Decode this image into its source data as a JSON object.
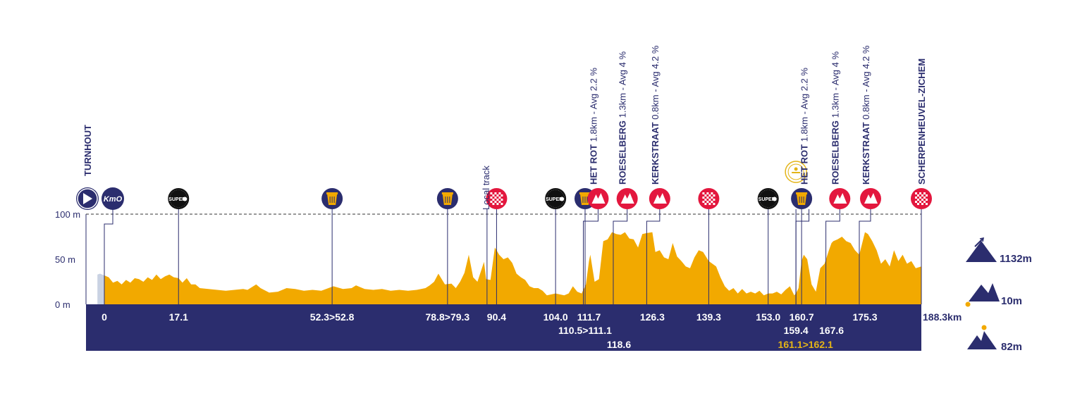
{
  "colors": {
    "navy": "#2b2d6e",
    "orange": "#f2a900",
    "red": "#e3173e",
    "gold": "#e3b417",
    "neutral_fill": "#c9d2e3",
    "white": "#ffffff"
  },
  "chart_data": {
    "type": "area",
    "title": "",
    "xlabel": "",
    "ylabel": "",
    "x_unit": "km",
    "xlim": [
      -1.6,
      188.3
    ],
    "ylim": [
      0,
      100
    ],
    "y_ticks": [
      {
        "value": 100,
        "label": "100 m"
      },
      {
        "value": 50,
        "label": "50 m"
      },
      {
        "value": 0,
        "label": "0 m"
      }
    ],
    "start_name": "TURNHOUT",
    "finish_name": "SCHERPENHEUVEL-ZICHEM",
    "kmo_label": "KmO",
    "profile": [
      [
        -1.6,
        33
      ],
      [
        -1,
        34
      ],
      [
        0,
        32
      ],
      [
        1,
        30
      ],
      [
        2,
        24
      ],
      [
        3,
        26
      ],
      [
        4,
        22
      ],
      [
        5,
        27
      ],
      [
        6,
        24
      ],
      [
        7,
        29
      ],
      [
        8,
        28
      ],
      [
        9,
        25
      ],
      [
        10,
        30
      ],
      [
        11,
        27
      ],
      [
        12,
        33
      ],
      [
        13,
        28
      ],
      [
        14,
        31
      ],
      [
        15,
        33
      ],
      [
        16,
        30
      ],
      [
        17.1,
        29
      ],
      [
        18,
        24
      ],
      [
        19,
        29
      ],
      [
        20,
        22
      ],
      [
        21,
        22
      ],
      [
        22,
        18
      ],
      [
        24,
        17
      ],
      [
        26,
        16
      ],
      [
        28,
        15
      ],
      [
        30,
        16
      ],
      [
        32,
        17
      ],
      [
        33,
        16
      ],
      [
        35,
        22
      ],
      [
        36,
        18
      ],
      [
        38,
        13
      ],
      [
        40,
        14
      ],
      [
        42,
        18
      ],
      [
        44,
        17
      ],
      [
        46,
        15
      ],
      [
        48,
        16
      ],
      [
        50,
        15
      ],
      [
        52.8,
        20
      ],
      [
        55,
        17
      ],
      [
        57,
        18
      ],
      [
        58,
        21
      ],
      [
        60,
        17
      ],
      [
        62,
        16
      ],
      [
        64,
        17
      ],
      [
        66,
        15
      ],
      [
        68,
        16
      ],
      [
        70,
        15
      ],
      [
        72,
        16
      ],
      [
        74,
        18
      ],
      [
        75,
        21
      ],
      [
        76,
        25
      ],
      [
        77,
        34
      ],
      [
        78.5,
        22
      ],
      [
        80,
        23
      ],
      [
        81,
        18
      ],
      [
        82,
        25
      ],
      [
        83,
        35
      ],
      [
        84,
        55
      ],
      [
        85,
        30
      ],
      [
        86,
        25
      ],
      [
        87.5,
        47
      ],
      [
        88,
        28
      ],
      [
        89,
        27
      ],
      [
        90,
        63
      ],
      [
        90.4,
        60
      ],
      [
        91,
        55
      ],
      [
        92,
        50
      ],
      [
        93,
        52
      ],
      [
        94,
        46
      ],
      [
        95,
        34
      ],
      [
        96,
        30
      ],
      [
        97,
        27
      ],
      [
        98,
        20
      ],
      [
        99,
        18
      ],
      [
        100,
        18
      ],
      [
        101,
        15
      ],
      [
        102,
        10
      ],
      [
        104,
        12
      ],
      [
        106,
        10
      ],
      [
        107,
        12
      ],
      [
        108,
        20
      ],
      [
        109,
        14
      ],
      [
        110,
        12
      ],
      [
        111,
        22
      ],
      [
        111.7,
        48
      ],
      [
        112,
        55
      ],
      [
        113,
        25
      ],
      [
        114,
        28
      ],
      [
        115,
        70
      ],
      [
        116,
        72
      ],
      [
        117,
        80
      ],
      [
        118,
        78
      ],
      [
        119,
        77
      ],
      [
        120,
        80
      ],
      [
        121,
        73
      ],
      [
        122,
        72
      ],
      [
        123,
        63
      ],
      [
        124,
        78
      ],
      [
        125,
        79
      ],
      [
        126.3,
        80
      ],
      [
        127,
        58
      ],
      [
        128,
        60
      ],
      [
        129,
        52
      ],
      [
        130,
        50
      ],
      [
        131,
        68
      ],
      [
        132,
        53
      ],
      [
        133,
        48
      ],
      [
        134,
        42
      ],
      [
        135,
        40
      ],
      [
        136,
        52
      ],
      [
        137,
        60
      ],
      [
        138,
        58
      ],
      [
        139.3,
        48
      ],
      [
        141,
        42
      ],
      [
        142,
        30
      ],
      [
        143,
        20
      ],
      [
        144,
        15
      ],
      [
        145,
        18
      ],
      [
        146,
        12
      ],
      [
        147,
        17
      ],
      [
        148,
        12
      ],
      [
        149,
        14
      ],
      [
        150,
        12
      ],
      [
        151,
        15
      ],
      [
        152,
        10
      ],
      [
        153,
        12
      ],
      [
        154,
        12
      ],
      [
        155,
        14
      ],
      [
        156,
        11
      ],
      [
        157,
        16
      ],
      [
        158,
        20
      ],
      [
        159,
        10
      ],
      [
        159.4,
        12
      ],
      [
        160,
        18
      ],
      [
        160.7,
        48
      ],
      [
        161.2,
        55
      ],
      [
        162,
        50
      ],
      [
        163,
        22
      ],
      [
        164,
        14
      ],
      [
        165,
        40
      ],
      [
        166,
        45
      ],
      [
        167,
        60
      ],
      [
        167.6,
        68
      ],
      [
        168,
        70
      ],
      [
        169,
        72
      ],
      [
        170,
        75
      ],
      [
        171,
        70
      ],
      [
        172,
        68
      ],
      [
        173,
        60
      ],
      [
        174,
        55
      ],
      [
        175.3,
        80
      ],
      [
        176,
        78
      ],
      [
        177,
        70
      ],
      [
        178,
        60
      ],
      [
        179,
        45
      ],
      [
        180,
        50
      ],
      [
        181,
        42
      ],
      [
        182,
        60
      ],
      [
        183,
        48
      ],
      [
        184,
        55
      ],
      [
        185,
        45
      ],
      [
        186,
        48
      ],
      [
        187,
        40
      ],
      [
        188.3,
        42
      ]
    ],
    "km_labels": [
      {
        "km": 0,
        "text": "0",
        "row": 1,
        "color": "white"
      },
      {
        "km": 17.1,
        "text": "17.1",
        "row": 1,
        "color": "white"
      },
      {
        "km": 52.5,
        "text": "52.3>52.8",
        "row": 1,
        "color": "white"
      },
      {
        "km": 79.1,
        "text": "78.8>79.3",
        "row": 1,
        "color": "white"
      },
      {
        "km": 90.4,
        "text": "90.4",
        "row": 1,
        "color": "white"
      },
      {
        "km": 104.0,
        "text": "104.0",
        "row": 1,
        "color": "white"
      },
      {
        "km": 110.8,
        "text": "110.5>111.1",
        "row": 2,
        "color": "white"
      },
      {
        "km": 111.7,
        "text": "111.7",
        "row": 1,
        "color": "white"
      },
      {
        "km": 118.6,
        "text": "118.6",
        "row": 3,
        "color": "white"
      },
      {
        "km": 126.3,
        "text": "126.3",
        "row": 1,
        "color": "white"
      },
      {
        "km": 139.3,
        "text": "139.3",
        "row": 1,
        "color": "white"
      },
      {
        "km": 153.0,
        "text": "153.0",
        "row": 1,
        "color": "white"
      },
      {
        "km": 159.4,
        "text": "159.4",
        "row": 2,
        "color": "white"
      },
      {
        "km": 160.7,
        "text": "160.7",
        "row": 1,
        "color": "white"
      },
      {
        "km": 161.6,
        "text": "161.1>162.1",
        "row": 3,
        "color": "gold"
      },
      {
        "km": 167.6,
        "text": "167.6",
        "row": 2,
        "color": "white"
      },
      {
        "km": 175.3,
        "text": "175.3",
        "row": 1,
        "color": "white"
      }
    ],
    "finish_distance": "188.3km",
    "markers": [
      {
        "km": 17.1,
        "icon": "super-sprint-icon",
        "label": "SUPER"
      },
      {
        "km": 52.5,
        "icon": "feed-zone-icon"
      },
      {
        "km": 79.1,
        "icon": "feed-zone-icon"
      },
      {
        "km": 90.4,
        "icon": "checkered-flag-icon"
      },
      {
        "km": 104.0,
        "icon": "super-sprint-icon",
        "label": "SUPER"
      },
      {
        "km": 110.8,
        "icon": "feed-zone-icon"
      },
      {
        "km": 111.7,
        "icon": "climb-icon"
      },
      {
        "km": 118.6,
        "icon": "climb-icon"
      },
      {
        "km": 126.3,
        "icon": "climb-icon"
      },
      {
        "km": 139.3,
        "icon": "checkered-flag-icon"
      },
      {
        "km": 153.0,
        "icon": "super-sprint-icon",
        "label": "SUPER"
      },
      {
        "km": 160.7,
        "icon": "feed-zone-icon"
      },
      {
        "km": 159.4,
        "icon": "gold-medal-icon",
        "dy": -38
      },
      {
        "km": 167.6,
        "icon": "climb-icon"
      },
      {
        "km": 175.3,
        "icon": "climb-icon"
      },
      {
        "km": 188.3,
        "icon": "checkered-flag-icon"
      }
    ],
    "local_track_label": {
      "km": 88.2,
      "text": "Local track"
    },
    "climb_labels": [
      {
        "km": 111.7,
        "name": "HET ROT",
        "detail": " 1.8km - Avg 2.2 %"
      },
      {
        "km": 118.6,
        "name": "ROESELBERG",
        "detail": " 1.3km - Avg 4 %"
      },
      {
        "km": 126.3,
        "name": "KERKSTRAAT",
        "detail": " 0.8km - Avg 4.2 %"
      },
      {
        "km": 160.7,
        "name": "HET ROT",
        "detail": " 1.8km - Avg 2.2 %"
      },
      {
        "km": 167.6,
        "name": "ROESELBERG",
        "detail": " 1.3km - Avg 4 %"
      },
      {
        "km": 175.3,
        "name": "KERKSTRAAT",
        "detail": " 0.8km - Avg 4.2 %"
      }
    ],
    "stats": {
      "climbing": "1132m",
      "lowest": "10m",
      "highest": "82m"
    }
  }
}
